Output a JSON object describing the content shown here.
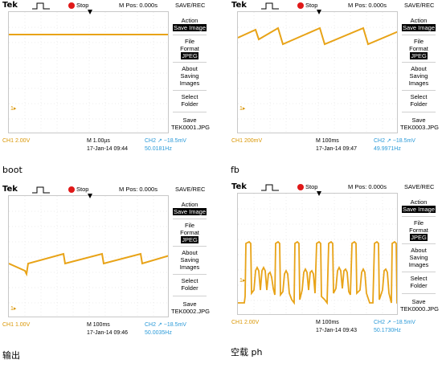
{
  "brand": "Tek",
  "colors": {
    "ch1": "#E8A317",
    "ch2": "#2A9AD8",
    "stop": "#E01818",
    "highlight": "#000000"
  },
  "panels": [
    {
      "status": "Stop",
      "mpos": "M Pos: 0.000s",
      "mode": "SAVE/REC",
      "menu": [
        "Action",
        "Save Image",
        "File",
        "Format",
        "JPEG",
        "About",
        "Saving",
        "Images",
        "Select",
        "Folder",
        "Save",
        "TEK0001.JPG"
      ],
      "ch1": "CH1  2.00V",
      "mtime": "M 1.00µs",
      "ch2": "CH2 ↗ −18.5mV",
      "date": "17-Jan-14 09:44",
      "freq": "50.0181Hz",
      "caption": "boot"
    },
    {
      "status": "Stop",
      "mpos": "M Pos: 0.000s",
      "mode": "SAVE/REC",
      "menu": [
        "Action",
        "Save Image",
        "File",
        "Format",
        "JPEG",
        "About",
        "Saving",
        "Images",
        "Select",
        "Folder",
        "Save",
        "TEK0003.JPG"
      ],
      "ch1": "CH1  200mV",
      "mtime": "M 100ms",
      "ch2": "CH2 ↗ −18.5mV",
      "date": "17-Jan-14 09:47",
      "freq": "49.9971Hz",
      "caption": "fb"
    },
    {
      "status": "Stop",
      "mpos": "M Pos: 0.000s",
      "mode": "SAVE/REC",
      "menu": [
        "Action",
        "Save Image",
        "File",
        "Format",
        "JPEG",
        "About",
        "Saving",
        "Images",
        "Select",
        "Folder",
        "Save",
        "TEK0002.JPG"
      ],
      "ch1": "CH1  1.00V",
      "mtime": "M 100ms",
      "ch2": "CH2 ↗ −18.5mV",
      "date": "17-Jan-14 09:46",
      "freq": "50.0035Hz",
      "caption": "输出"
    },
    {
      "status": "Stop",
      "mpos": "M Pos: 0.000s",
      "mode": "SAVE/REC",
      "menu": [
        "Action",
        "Save Image",
        "File",
        "Format",
        "JPEG",
        "About",
        "Saving",
        "Images",
        "Select",
        "Folder",
        "Save",
        "TEK0000.JPG"
      ],
      "ch1": "CH1  2.00V",
      "mtime": "M 100ms",
      "ch2": "CH2 ↗ −18.5mV",
      "date": "17-Jan-14 09:43",
      "freq": "50.1730Hz",
      "caption": "空载 ph"
    }
  ]
}
